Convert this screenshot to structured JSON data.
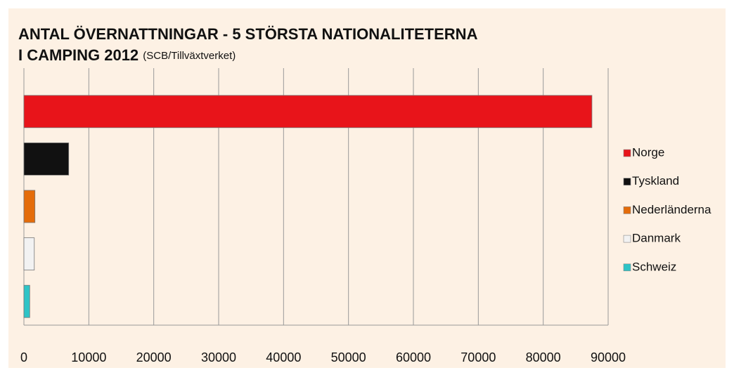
{
  "chart_data": {
    "type": "bar",
    "orientation": "horizontal",
    "title": "ANTAL ÖVERNATTNINGAR - 5 STÖRSTA NATIONALITETERNA",
    "title_line2": "I CAMPING 2012",
    "source": "(SCB/Tillväxtverket)",
    "series": [
      {
        "name": "Norge",
        "color": "#e8141a",
        "values": [
          87500
        ]
      },
      {
        "name": "Tyskland",
        "color": "#111111",
        "values": [
          6900
        ]
      },
      {
        "name": "Nederländerna",
        "color": "#e46c0a",
        "values": [
          1700
        ]
      },
      {
        "name": "Danmark",
        "color": "#f2f2f2",
        "values": [
          1600
        ]
      },
      {
        "name": "Schweiz",
        "color": "#2ec4c6",
        "values": [
          900
        ]
      }
    ],
    "xlim": [
      0,
      90000
    ],
    "xticks": [
      0,
      10000,
      20000,
      30000,
      40000,
      50000,
      60000,
      70000,
      80000,
      90000
    ],
    "grid": true,
    "legend": "right"
  }
}
